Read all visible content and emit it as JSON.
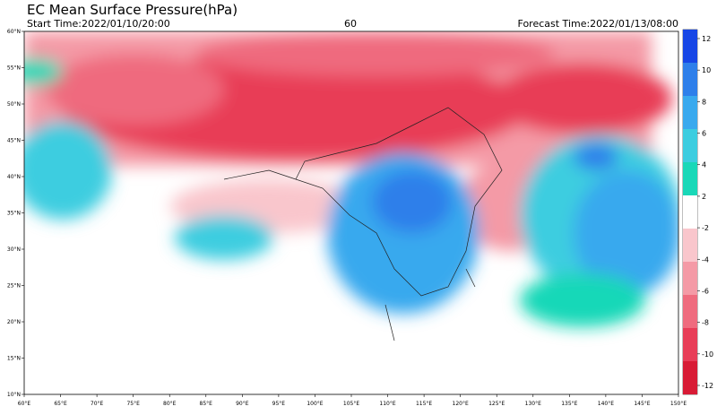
{
  "header": {
    "title": "EC Mean Surface Pressure(hPa)",
    "start_time": "Start Time:2022/01/10/20:00",
    "forecast_hour": "60",
    "forecast_time": "Forecast Time:2022/01/13/08:00"
  },
  "map": {
    "lon_range": [
      60,
      150
    ],
    "lat_range": [
      10,
      60
    ],
    "lon_ticks": [
      {
        "value": 60,
        "label": "60°E"
      },
      {
        "value": 65,
        "label": "65°E"
      },
      {
        "value": 70,
        "label": "70°E"
      },
      {
        "value": 75,
        "label": "75°E"
      },
      {
        "value": 80,
        "label": "80°E"
      },
      {
        "value": 85,
        "label": "85°E"
      },
      {
        "value": 90,
        "label": "90°E"
      },
      {
        "value": 95,
        "label": "95°E"
      },
      {
        "value": 100,
        "label": "100°E"
      },
      {
        "value": 105,
        "label": "105°E"
      },
      {
        "value": 110,
        "label": "110°E"
      },
      {
        "value": 115,
        "label": "115°E"
      },
      {
        "value": 120,
        "label": "120°E"
      },
      {
        "value": 125,
        "label": "125°E"
      },
      {
        "value": 130,
        "label": "130°E"
      },
      {
        "value": 135,
        "label": "135°E"
      },
      {
        "value": 140,
        "label": "140°E"
      },
      {
        "value": 145,
        "label": "145°E"
      },
      {
        "value": 150,
        "label": "150°E"
      }
    ],
    "lat_ticks": [
      {
        "value": 10,
        "label": "10°N"
      },
      {
        "value": 15,
        "label": "15°N"
      },
      {
        "value": 20,
        "label": "20°N"
      },
      {
        "value": 25,
        "label": "25°N"
      },
      {
        "value": 30,
        "label": "30°N"
      },
      {
        "value": 35,
        "label": "35°N"
      },
      {
        "value": 40,
        "label": "40°N"
      },
      {
        "value": 45,
        "label": "45°N"
      },
      {
        "value": 50,
        "label": "50°N"
      },
      {
        "value": 55,
        "label": "55°N"
      },
      {
        "value": 60,
        "label": "60°N"
      }
    ]
  },
  "colorbar": {
    "ticks": [
      12,
      10,
      8,
      6,
      4,
      2,
      -2,
      -4,
      -6,
      -8,
      -10,
      -12
    ],
    "colors": [
      "#1746e6",
      "#2e7fea",
      "#39a9ee",
      "#3ccde0",
      "#19d8b8",
      "#ffffff",
      "#f9c6cc",
      "#f49aa6",
      "#ef6b7e",
      "#e83d57",
      "#d81b35"
    ]
  }
}
